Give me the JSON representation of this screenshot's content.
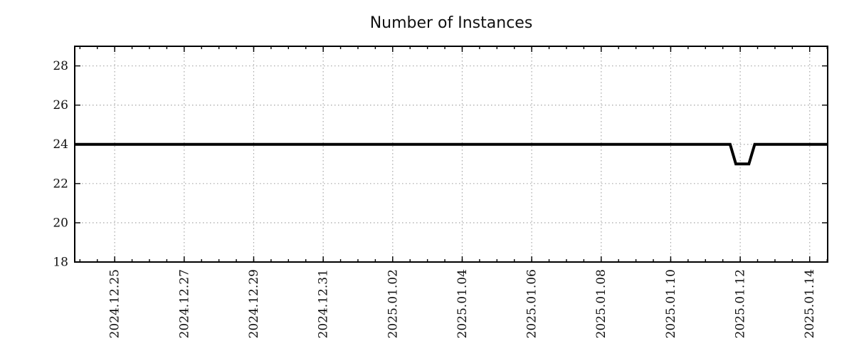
{
  "colors": {
    "background": "#ffffff",
    "line": "#000000",
    "grid": "#a6a6a6",
    "axis": "#000000",
    "text": "#111111"
  },
  "chart_data": {
    "type": "line",
    "title": "Number of Instances",
    "xlabel": "",
    "ylabel": "",
    "grid": {
      "show": true,
      "style": "dotted"
    },
    "legend": {
      "show": false
    },
    "x_axis": {
      "scale": "time",
      "min": "2024-12-23T20:24:00",
      "max": "2025-01-14T12:24:00",
      "minor_tick_interval_hours": 12,
      "major_ticks": [
        {
          "t": "2024-12-25T00:00:00",
          "label": "2024.12.25"
        },
        {
          "t": "2024-12-27T00:00:00",
          "label": "2024.12.27"
        },
        {
          "t": "2024-12-29T00:00:00",
          "label": "2024.12.29"
        },
        {
          "t": "2024-12-31T00:00:00",
          "label": "2024.12.31"
        },
        {
          "t": "2025-01-02T00:00:00",
          "label": "2025.01.02"
        },
        {
          "t": "2025-01-04T00:00:00",
          "label": "2025.01.04"
        },
        {
          "t": "2025-01-06T00:00:00",
          "label": "2025.01.06"
        },
        {
          "t": "2025-01-08T00:00:00",
          "label": "2025.01.08"
        },
        {
          "t": "2025-01-10T00:00:00",
          "label": "2025.01.10"
        },
        {
          "t": "2025-01-12T00:00:00",
          "label": "2025.01.12"
        },
        {
          "t": "2025-01-14T00:00:00",
          "label": "2025.01.14"
        }
      ]
    },
    "y_axis": {
      "min": 18,
      "max": 29,
      "major_ticks": [
        18,
        20,
        22,
        24,
        26,
        28
      ]
    },
    "series": [
      {
        "name": "instances",
        "color": "#000000",
        "stroke_width": 4,
        "points": [
          [
            "2024-12-23T20:24:00",
            24
          ],
          [
            "2025-01-11T17:00:00",
            24
          ],
          [
            "2025-01-11T21:00:00",
            23
          ],
          [
            "2025-01-12T06:00:00",
            23
          ],
          [
            "2025-01-12T10:00:00",
            24
          ],
          [
            "2025-01-14T12:24:00",
            24
          ]
        ]
      }
    ]
  }
}
